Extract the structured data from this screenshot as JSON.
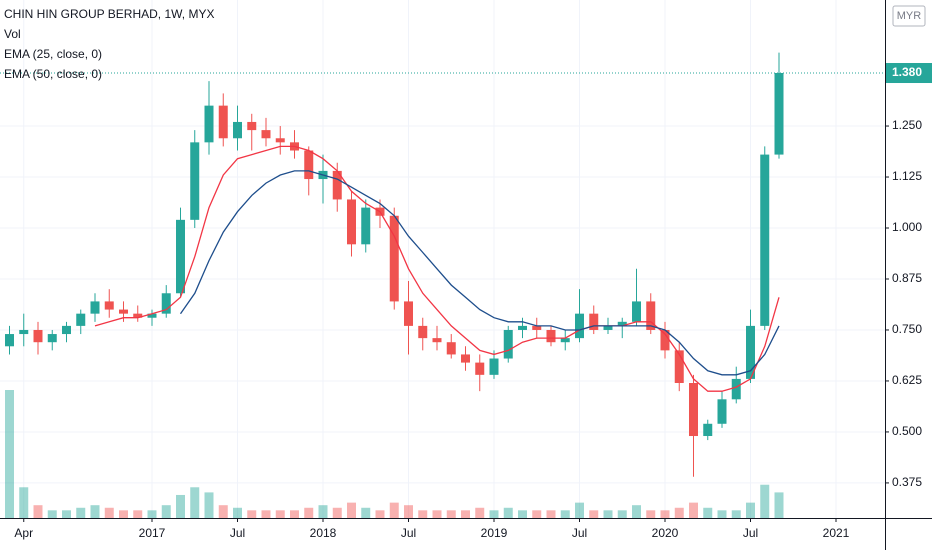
{
  "chart_data": {
    "type": "candlestick",
    "title": "CHIN HIN GROUP BERHAD, 1W, MYX",
    "legend": [
      "Vol",
      "EMA (25, close, 0)",
      "EMA (50, close, 0)"
    ],
    "currency": "MYR",
    "last_label": "1.380",
    "up_color": "#26a69a",
    "down_color": "#ef5350",
    "grid": true,
    "categories": [
      "2016-03",
      "2016-04",
      "2016-05",
      "2016-06",
      "2016-07",
      "2016-08",
      "2016-09",
      "2016-10",
      "2016-11",
      "2016-12",
      "2017-01",
      "2017-02",
      "2017-03",
      "2017-04",
      "2017-05",
      "2017-06",
      "2017-07",
      "2017-08",
      "2017-09",
      "2017-10",
      "2017-11",
      "2017-12",
      "2018-01",
      "2018-02",
      "2018-03",
      "2018-04",
      "2018-05",
      "2018-06",
      "2018-07",
      "2018-08",
      "2018-09",
      "2018-10",
      "2018-11",
      "2018-12",
      "2019-01",
      "2019-02",
      "2019-03",
      "2019-04",
      "2019-05",
      "2019-06",
      "2019-07",
      "2019-08",
      "2019-09",
      "2019-10",
      "2019-11",
      "2019-12",
      "2020-01",
      "2020-02",
      "2020-03",
      "2020-04",
      "2020-05",
      "2020-06",
      "2020-07",
      "2020-08",
      "2020-09"
    ],
    "open": [
      0.71,
      0.74,
      0.75,
      0.72,
      0.74,
      0.76,
      0.79,
      0.82,
      0.8,
      0.79,
      0.78,
      0.79,
      0.84,
      1.02,
      1.21,
      1.3,
      1.22,
      1.26,
      1.24,
      1.22,
      1.21,
      1.19,
      1.12,
      1.14,
      1.07,
      0.96,
      1.05,
      1.03,
      0.82,
      0.76,
      0.73,
      0.72,
      0.69,
      0.67,
      0.64,
      0.68,
      0.75,
      0.76,
      0.75,
      0.72,
      0.73,
      0.79,
      0.75,
      0.76,
      0.77,
      0.82,
      0.75,
      0.7,
      0.62,
      0.49,
      0.52,
      0.58,
      0.63,
      0.76,
      1.18
    ],
    "high": [
      0.76,
      0.79,
      0.77,
      0.75,
      0.77,
      0.8,
      0.84,
      0.85,
      0.82,
      0.81,
      0.8,
      0.86,
      1.05,
      1.24,
      1.36,
      1.33,
      1.3,
      1.28,
      1.27,
      1.25,
      1.24,
      1.2,
      1.18,
      1.16,
      1.09,
      1.07,
      1.07,
      1.05,
      0.87,
      0.78,
      0.76,
      0.74,
      0.71,
      0.69,
      0.7,
      0.76,
      0.78,
      0.78,
      0.76,
      0.75,
      0.85,
      0.81,
      0.78,
      0.78,
      0.9,
      0.84,
      0.77,
      0.72,
      0.64,
      0.53,
      0.6,
      0.66,
      0.8,
      1.2,
      1.43
    ],
    "low": [
      0.69,
      0.71,
      0.69,
      0.7,
      0.72,
      0.74,
      0.77,
      0.78,
      0.77,
      0.77,
      0.76,
      0.78,
      0.83,
      1.0,
      1.18,
      1.2,
      1.19,
      1.19,
      1.2,
      1.18,
      1.17,
      1.08,
      1.06,
      1.04,
      0.93,
      0.94,
      1.0,
      0.8,
      0.69,
      0.7,
      0.7,
      0.68,
      0.65,
      0.6,
      0.63,
      0.67,
      0.73,
      0.73,
      0.71,
      0.7,
      0.72,
      0.74,
      0.74,
      0.73,
      0.76,
      0.74,
      0.68,
      0.6,
      0.39,
      0.48,
      0.51,
      0.57,
      0.62,
      0.75,
      1.17
    ],
    "close": [
      0.74,
      0.75,
      0.72,
      0.74,
      0.76,
      0.79,
      0.82,
      0.8,
      0.79,
      0.78,
      0.79,
      0.84,
      1.02,
      1.21,
      1.3,
      1.22,
      1.26,
      1.24,
      1.22,
      1.21,
      1.19,
      1.12,
      1.14,
      1.07,
      0.96,
      1.05,
      1.03,
      0.82,
      0.76,
      0.73,
      0.72,
      0.69,
      0.67,
      0.64,
      0.68,
      0.75,
      0.76,
      0.75,
      0.72,
      0.73,
      0.79,
      0.75,
      0.76,
      0.77,
      0.82,
      0.75,
      0.7,
      0.62,
      0.49,
      0.52,
      0.58,
      0.63,
      0.76,
      1.18,
      1.38
    ],
    "volume": [
      5.0,
      1.2,
      0.5,
      0.3,
      0.3,
      0.4,
      0.5,
      0.4,
      0.3,
      0.3,
      0.3,
      0.5,
      0.9,
      1.2,
      1.0,
      0.5,
      0.4,
      0.3,
      0.3,
      0.3,
      0.3,
      0.4,
      0.5,
      0.4,
      0.6,
      0.4,
      0.3,
      0.6,
      0.5,
      0.3,
      0.3,
      0.3,
      0.3,
      0.4,
      0.3,
      0.4,
      0.3,
      0.3,
      0.3,
      0.3,
      0.6,
      0.3,
      0.3,
      0.3,
      0.5,
      0.3,
      0.3,
      0.4,
      0.6,
      0.4,
      0.3,
      0.3,
      0.6,
      1.3,
      1.0
    ],
    "series": [
      {
        "name": "EMA (25, close, 0)",
        "color": "#f23645",
        "values": [
          null,
          null,
          null,
          null,
          null,
          null,
          0.76,
          0.77,
          0.78,
          0.78,
          0.79,
          0.8,
          0.83,
          0.93,
          1.05,
          1.13,
          1.17,
          1.18,
          1.19,
          1.2,
          1.2,
          1.19,
          1.17,
          1.14,
          1.09,
          1.06,
          1.04,
          0.98,
          0.9,
          0.84,
          0.8,
          0.76,
          0.73,
          0.7,
          0.69,
          0.7,
          0.72,
          0.73,
          0.73,
          0.73,
          0.75,
          0.76,
          0.76,
          0.76,
          0.77,
          0.77,
          0.74,
          0.69,
          0.63,
          0.6,
          0.6,
          0.61,
          0.63,
          0.71,
          0.83
        ]
      },
      {
        "name": "EMA (50, close, 0)",
        "color": "#1e4e8c",
        "values": [
          null,
          null,
          null,
          null,
          null,
          null,
          null,
          null,
          null,
          null,
          null,
          null,
          0.79,
          0.84,
          0.92,
          0.99,
          1.04,
          1.08,
          1.11,
          1.13,
          1.14,
          1.14,
          1.13,
          1.12,
          1.1,
          1.08,
          1.06,
          1.03,
          0.98,
          0.94,
          0.9,
          0.86,
          0.83,
          0.8,
          0.78,
          0.77,
          0.77,
          0.76,
          0.76,
          0.75,
          0.75,
          0.76,
          0.76,
          0.76,
          0.76,
          0.76,
          0.75,
          0.72,
          0.68,
          0.65,
          0.64,
          0.64,
          0.65,
          0.69,
          0.76
        ]
      }
    ],
    "ylim": [
      0.289,
      1.559
    ],
    "yticks": [
      {
        "value": 0.375,
        "label": "0.375"
      },
      {
        "value": 0.5,
        "label": "0.500"
      },
      {
        "value": 0.625,
        "label": "0.625"
      },
      {
        "value": 0.75,
        "label": "0.750"
      },
      {
        "value": 0.875,
        "label": "0.875"
      },
      {
        "value": 1.0,
        "label": "1.000"
      },
      {
        "value": 1.125,
        "label": "1.125"
      },
      {
        "value": 1.25,
        "label": "1.250"
      }
    ],
    "xticks": [
      {
        "value": "2016-04",
        "label": "Apr"
      },
      {
        "value": "2017-01",
        "label": "2017"
      },
      {
        "value": "2017-07",
        "label": "Jul"
      },
      {
        "value": "2018-01",
        "label": "2018"
      },
      {
        "value": "2018-07",
        "label": "Jul"
      },
      {
        "value": "2019-01",
        "label": "2019"
      },
      {
        "value": "2019-07",
        "label": "Jul"
      },
      {
        "value": "2020-01",
        "label": "2020"
      },
      {
        "value": "2020-07",
        "label": "Jul"
      },
      {
        "value": "2021-01",
        "label": "2021"
      }
    ]
  }
}
